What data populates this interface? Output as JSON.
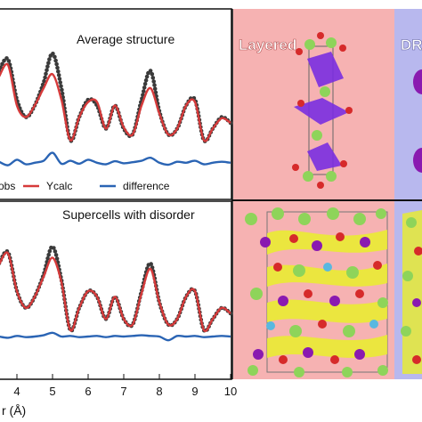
{
  "top_plot": {
    "title": "Average structure",
    "legend": [
      {
        "label": "obs",
        "color": "#3a3a3a"
      },
      {
        "label": "Ycalc",
        "color": "#d63a3a"
      },
      {
        "label": "difference",
        "color": "#2a64b4"
      }
    ]
  },
  "bottom_plot": {
    "title": "Supercells with disorder"
  },
  "structure_panels": {
    "layered_label": "Layered",
    "right_label": "DR"
  },
  "colors": {
    "obs": "#3a3a3a",
    "calc": "#d63a3a",
    "diff": "#2a64b4",
    "layered_bg": "#f6b2b2",
    "right_bg": "#b8b8ee",
    "green_atom": "#8ed45a",
    "red_atom": "#d62a2a",
    "purple_atom": "#8a1ab0",
    "yellow_poly": "#e9ee2a",
    "cyan_atom": "#5ab8e0"
  },
  "chart_data": [
    {
      "type": "line",
      "title": "Average structure",
      "xlabel": "r (Å)",
      "xlim": [
        3.5,
        10
      ],
      "x_ticks": [
        "4",
        "5",
        "6",
        "7",
        "8",
        "9",
        "10"
      ],
      "series": [
        {
          "name": "obs",
          "style": "dots",
          "x": [
            3.5,
            3.75,
            4.0,
            4.25,
            4.5,
            4.75,
            5.0,
            5.25,
            5.5,
            5.75,
            6.0,
            6.25,
            6.5,
            6.75,
            7.0,
            7.25,
            7.5,
            7.75,
            8.0,
            8.25,
            8.5,
            8.75,
            9.0,
            9.25,
            9.5,
            9.75,
            10.0
          ],
          "y": [
            0.85,
            0.95,
            0.6,
            0.45,
            0.55,
            0.75,
            1.0,
            0.7,
            0.25,
            0.45,
            0.6,
            0.55,
            0.35,
            0.55,
            0.35,
            0.3,
            0.6,
            0.85,
            0.5,
            0.3,
            0.35,
            0.55,
            0.6,
            0.25,
            0.35,
            0.45,
            0.4
          ]
        },
        {
          "name": "Ycalc",
          "style": "line",
          "x": [
            3.5,
            3.75,
            4.0,
            4.25,
            4.5,
            4.75,
            5.0,
            5.25,
            5.5,
            5.75,
            6.0,
            6.25,
            6.5,
            6.75,
            7.0,
            7.25,
            7.5,
            7.75,
            8.0,
            8.25,
            8.5,
            8.75,
            9.0,
            9.25,
            9.5,
            9.75,
            10.0
          ],
          "y": [
            0.8,
            0.9,
            0.55,
            0.45,
            0.55,
            0.7,
            0.82,
            0.6,
            0.25,
            0.45,
            0.58,
            0.58,
            0.35,
            0.55,
            0.36,
            0.3,
            0.55,
            0.7,
            0.48,
            0.3,
            0.35,
            0.55,
            0.58,
            0.25,
            0.35,
            0.44,
            0.4
          ]
        },
        {
          "name": "difference",
          "style": "line",
          "x": [
            3.5,
            3.75,
            4.0,
            4.25,
            4.5,
            4.75,
            5.0,
            5.25,
            5.5,
            5.75,
            6.0,
            6.25,
            6.5,
            6.75,
            7.0,
            7.25,
            7.5,
            7.75,
            8.0,
            8.25,
            8.5,
            8.75,
            9.0,
            9.25,
            9.5,
            9.75,
            10.0
          ],
          "y": [
            -0.78,
            -0.85,
            -0.74,
            -0.83,
            -0.8,
            -0.76,
            -0.6,
            -0.82,
            -0.76,
            -0.82,
            -0.74,
            -0.8,
            -0.83,
            -0.77,
            -0.81,
            -0.79,
            -0.76,
            -0.7,
            -0.8,
            -0.84,
            -0.78,
            -0.8,
            -0.76,
            -0.83,
            -0.8,
            -0.78,
            -0.8
          ]
        }
      ]
    },
    {
      "type": "line",
      "title": "Supercells with disorder",
      "xlabel": "r (Å)",
      "xlim": [
        3.5,
        10
      ],
      "x_ticks": [
        "4",
        "5",
        "6",
        "7",
        "8",
        "9",
        "10"
      ],
      "series": [
        {
          "name": "obs",
          "style": "dots",
          "x": [
            3.5,
            3.75,
            4.0,
            4.25,
            4.5,
            4.75,
            5.0,
            5.25,
            5.5,
            5.75,
            6.0,
            6.25,
            6.5,
            6.75,
            7.0,
            7.25,
            7.5,
            7.75,
            8.0,
            8.25,
            8.5,
            8.75,
            9.0,
            9.25,
            9.5,
            9.75,
            10.0
          ],
          "y": [
            0.85,
            0.95,
            0.6,
            0.45,
            0.55,
            0.75,
            1.0,
            0.7,
            0.25,
            0.45,
            0.6,
            0.55,
            0.35,
            0.55,
            0.35,
            0.3,
            0.6,
            0.85,
            0.5,
            0.3,
            0.35,
            0.55,
            0.6,
            0.25,
            0.35,
            0.45,
            0.4
          ]
        },
        {
          "name": "Ycalc",
          "style": "line",
          "x": [
            3.5,
            3.75,
            4.0,
            4.25,
            4.5,
            4.75,
            5.0,
            5.25,
            5.5,
            5.75,
            6.0,
            6.25,
            6.5,
            6.75,
            7.0,
            7.25,
            7.5,
            7.75,
            8.0,
            8.25,
            8.5,
            8.75,
            9.0,
            9.25,
            9.5,
            9.75,
            10.0
          ],
          "y": [
            0.84,
            0.94,
            0.6,
            0.45,
            0.55,
            0.73,
            0.9,
            0.68,
            0.25,
            0.45,
            0.6,
            0.55,
            0.35,
            0.55,
            0.35,
            0.3,
            0.58,
            0.8,
            0.5,
            0.3,
            0.35,
            0.55,
            0.6,
            0.25,
            0.35,
            0.45,
            0.4
          ]
        },
        {
          "name": "difference",
          "style": "line",
          "x": [
            3.5,
            3.75,
            4.0,
            4.25,
            4.5,
            4.75,
            5.0,
            5.25,
            5.5,
            5.75,
            6.0,
            6.25,
            6.5,
            6.75,
            7.0,
            7.25,
            7.5,
            7.75,
            8.0,
            8.25,
            8.5,
            8.75,
            9.0,
            9.25,
            9.5,
            9.75,
            10.0
          ],
          "y": [
            -0.8,
            -0.82,
            -0.79,
            -0.81,
            -0.8,
            -0.78,
            -0.74,
            -0.8,
            -0.79,
            -0.81,
            -0.8,
            -0.79,
            -0.81,
            -0.79,
            -0.8,
            -0.79,
            -0.78,
            -0.79,
            -0.8,
            -0.86,
            -0.79,
            -0.8,
            -0.79,
            -0.81,
            -0.8,
            -0.79,
            -0.8
          ]
        }
      ]
    }
  ]
}
